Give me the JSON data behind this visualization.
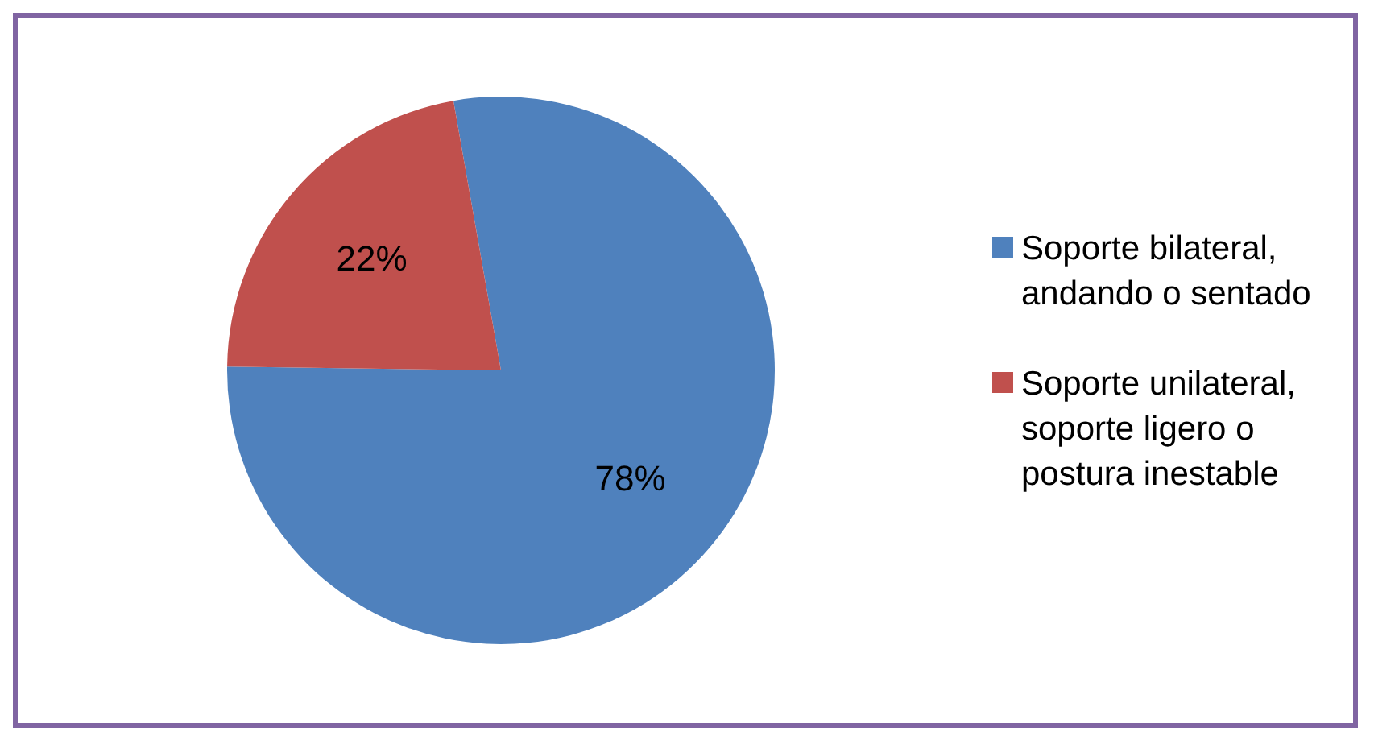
{
  "chart_data": {
    "type": "pie",
    "categories": [
      "Soporte bilateral, andando o sentado",
      "Soporte unilateral, soporte ligero o postura inestable"
    ],
    "values": [
      78,
      22
    ],
    "colors": [
      "#4f81bd",
      "#c0504d"
    ],
    "value_labels": [
      "78%",
      "22%"
    ],
    "legend": "right"
  }
}
